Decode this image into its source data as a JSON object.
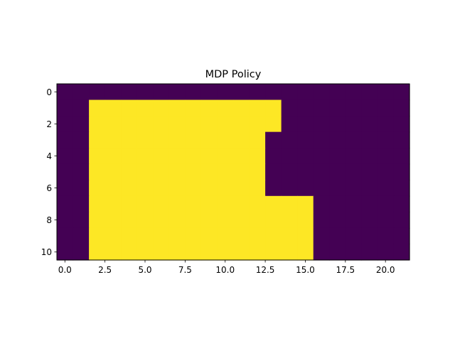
{
  "chart_data": {
    "type": "heatmap",
    "title": "MDP Policy",
    "xlabel": "",
    "ylabel": "",
    "rows": 11,
    "cols": 22,
    "xlim": [
      -0.5,
      21.5
    ],
    "ylim": [
      10.5,
      -0.5
    ],
    "x_ticks": [
      0.0,
      2.5,
      5.0,
      7.5,
      10.0,
      12.5,
      15.0,
      17.5,
      20.0
    ],
    "x_tick_labels": [
      "0.0",
      "2.5",
      "5.0",
      "7.5",
      "10.0",
      "12.5",
      "15.0",
      "17.5",
      "20.0"
    ],
    "y_ticks": [
      0,
      2,
      4,
      6,
      8,
      10
    ],
    "y_tick_labels": [
      "0",
      "2",
      "4",
      "6",
      "8",
      "10"
    ],
    "colormap": "viridis",
    "colors": {
      "low": "#440154",
      "high": "#fde725"
    },
    "grid": false,
    "values": [
      [
        0,
        0,
        0,
        0,
        0,
        0,
        0,
        0,
        0,
        0,
        0,
        0,
        0,
        0,
        0,
        0,
        0,
        0,
        0,
        0,
        0,
        0
      ],
      [
        0,
        0,
        1,
        1,
        1,
        1,
        1,
        1,
        1,
        1,
        1,
        1,
        1,
        1,
        0,
        0,
        0,
        0,
        0,
        0,
        0,
        0
      ],
      [
        0,
        0,
        1,
        1,
        1,
        1,
        1,
        1,
        1,
        1,
        1,
        1,
        1,
        1,
        0,
        0,
        0,
        0,
        0,
        0,
        0,
        0
      ],
      [
        0,
        0,
        1,
        1,
        1,
        1,
        1,
        1,
        1,
        1,
        1,
        1,
        1,
        0,
        0,
        0,
        0,
        0,
        0,
        0,
        0,
        0
      ],
      [
        0,
        0,
        1,
        1,
        1,
        1,
        1,
        1,
        1,
        1,
        1,
        1,
        1,
        0,
        0,
        0,
        0,
        0,
        0,
        0,
        0,
        0
      ],
      [
        0,
        0,
        1,
        1,
        1,
        1,
        1,
        1,
        1,
        1,
        1,
        1,
        1,
        0,
        0,
        0,
        0,
        0,
        0,
        0,
        0,
        0
      ],
      [
        0,
        0,
        1,
        1,
        1,
        1,
        1,
        1,
        1,
        1,
        1,
        1,
        1,
        0,
        0,
        0,
        0,
        0,
        0,
        0,
        0,
        0
      ],
      [
        0,
        0,
        1,
        1,
        1,
        1,
        1,
        1,
        1,
        1,
        1,
        1,
        1,
        1,
        1,
        1,
        0,
        0,
        0,
        0,
        0,
        0
      ],
      [
        0,
        0,
        1,
        1,
        1,
        1,
        1,
        1,
        1,
        1,
        1,
        1,
        1,
        1,
        1,
        1,
        0,
        0,
        0,
        0,
        0,
        0
      ],
      [
        0,
        0,
        1,
        1,
        1,
        1,
        1,
        1,
        1,
        1,
        1,
        1,
        1,
        1,
        1,
        1,
        0,
        0,
        0,
        0,
        0,
        0
      ],
      [
        0,
        0,
        1,
        1,
        1,
        1,
        1,
        1,
        1,
        1,
        1,
        1,
        1,
        1,
        1,
        1,
        0,
        0,
        0,
        0,
        0,
        0
      ]
    ]
  }
}
